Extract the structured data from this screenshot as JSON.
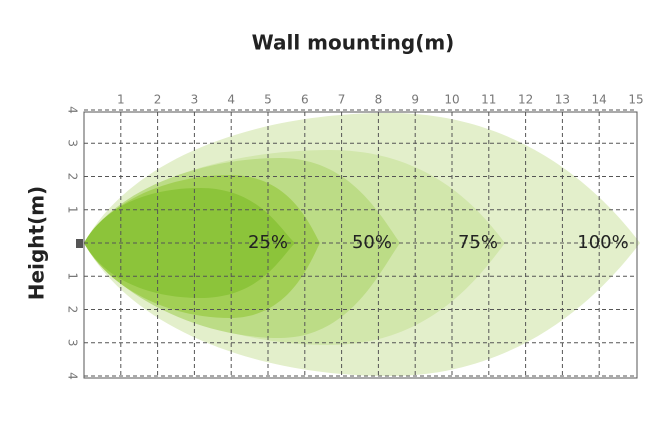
{
  "title": "Wall mounting(m)",
  "y_label": "Height(m)",
  "x_ticks": [
    "1",
    "2",
    "3",
    "4",
    "5",
    "6",
    "7",
    "8",
    "9",
    "10",
    "11",
    "12",
    "13",
    "14",
    "15"
  ],
  "y_ticks_top": [
    "4",
    "3",
    "2",
    "1"
  ],
  "y_ticks_bottom": [
    "1",
    "2",
    "3",
    "4"
  ],
  "zones": [
    "25%",
    "50%",
    "75%",
    "100%"
  ]
}
